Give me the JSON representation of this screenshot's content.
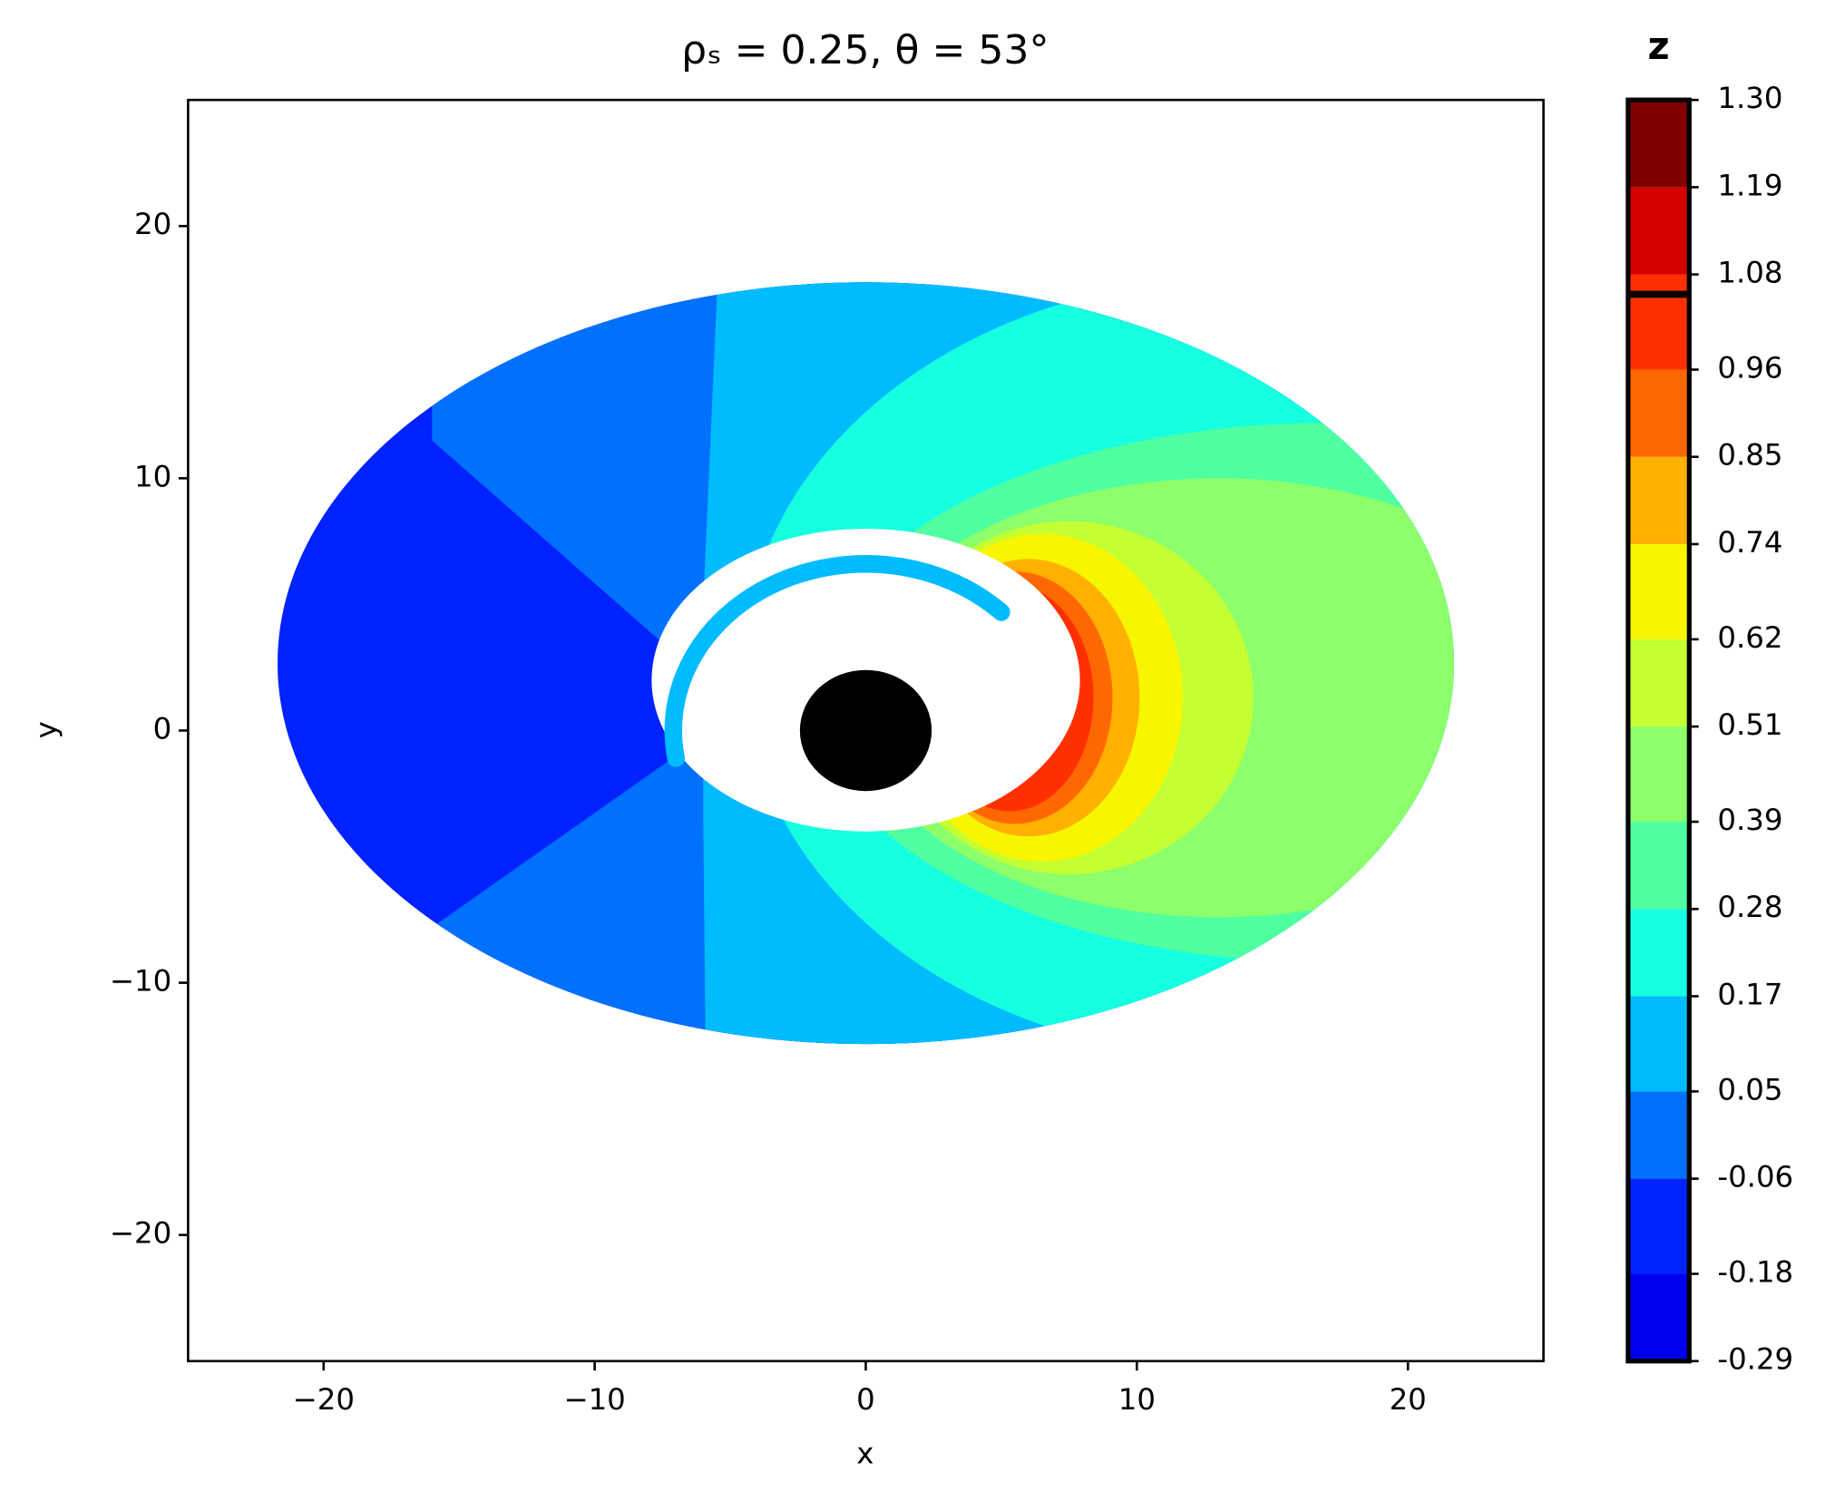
{
  "chart_data": {
    "type": "contour",
    "title": "ρₛ = 0.25,  θ = 53°",
    "xlabel": "x",
    "ylabel": "y",
    "xlim": [
      -25,
      25
    ],
    "ylim": [
      -25,
      25
    ],
    "xticks": [
      {
        "value": -20,
        "label": "−20"
      },
      {
        "value": -10,
        "label": "−10"
      },
      0,
      10,
      20
    ],
    "yticks": [
      {
        "value": -20,
        "label": "−20"
      },
      {
        "value": -10,
        "label": "−10"
      },
      0,
      10,
      20
    ],
    "colorbar": {
      "label": "z",
      "ticks": [
        {
          "value": -0.29,
          "label": "-0.29"
        },
        {
          "value": -0.18,
          "label": "-0.18"
        },
        {
          "value": -0.06,
          "label": "-0.06"
        },
        {
          "value": 0.05,
          "label": "0.05"
        },
        {
          "value": 0.17,
          "label": "0.17"
        },
        {
          "value": 0.28,
          "label": "0.28"
        },
        {
          "value": 0.39,
          "label": "0.39"
        },
        {
          "value": 0.51,
          "label": "0.51"
        },
        {
          "value": 0.62,
          "label": "0.62"
        },
        {
          "value": 0.74,
          "label": "0.74"
        },
        {
          "value": 0.85,
          "label": "0.85"
        },
        {
          "value": 0.96,
          "label": "0.96"
        },
        {
          "value": 1.08,
          "label": "1.08"
        },
        {
          "value": 1.19,
          "label": "1.19"
        },
        {
          "value": 1.3,
          "label": "1.30"
        }
      ],
      "colors": [
        "#0000ee",
        "#0022ff",
        "#0070ff",
        "#00bcff",
        "#16ffe0",
        "#50ffa0",
        "#8cff6a",
        "#c4ff34",
        "#f8f500",
        "#ffb000",
        "#ff6800",
        "#ff3000",
        "#d40000",
        "#800000"
      ],
      "line": 1.055
    },
    "shadow_color": "#000000"
  }
}
